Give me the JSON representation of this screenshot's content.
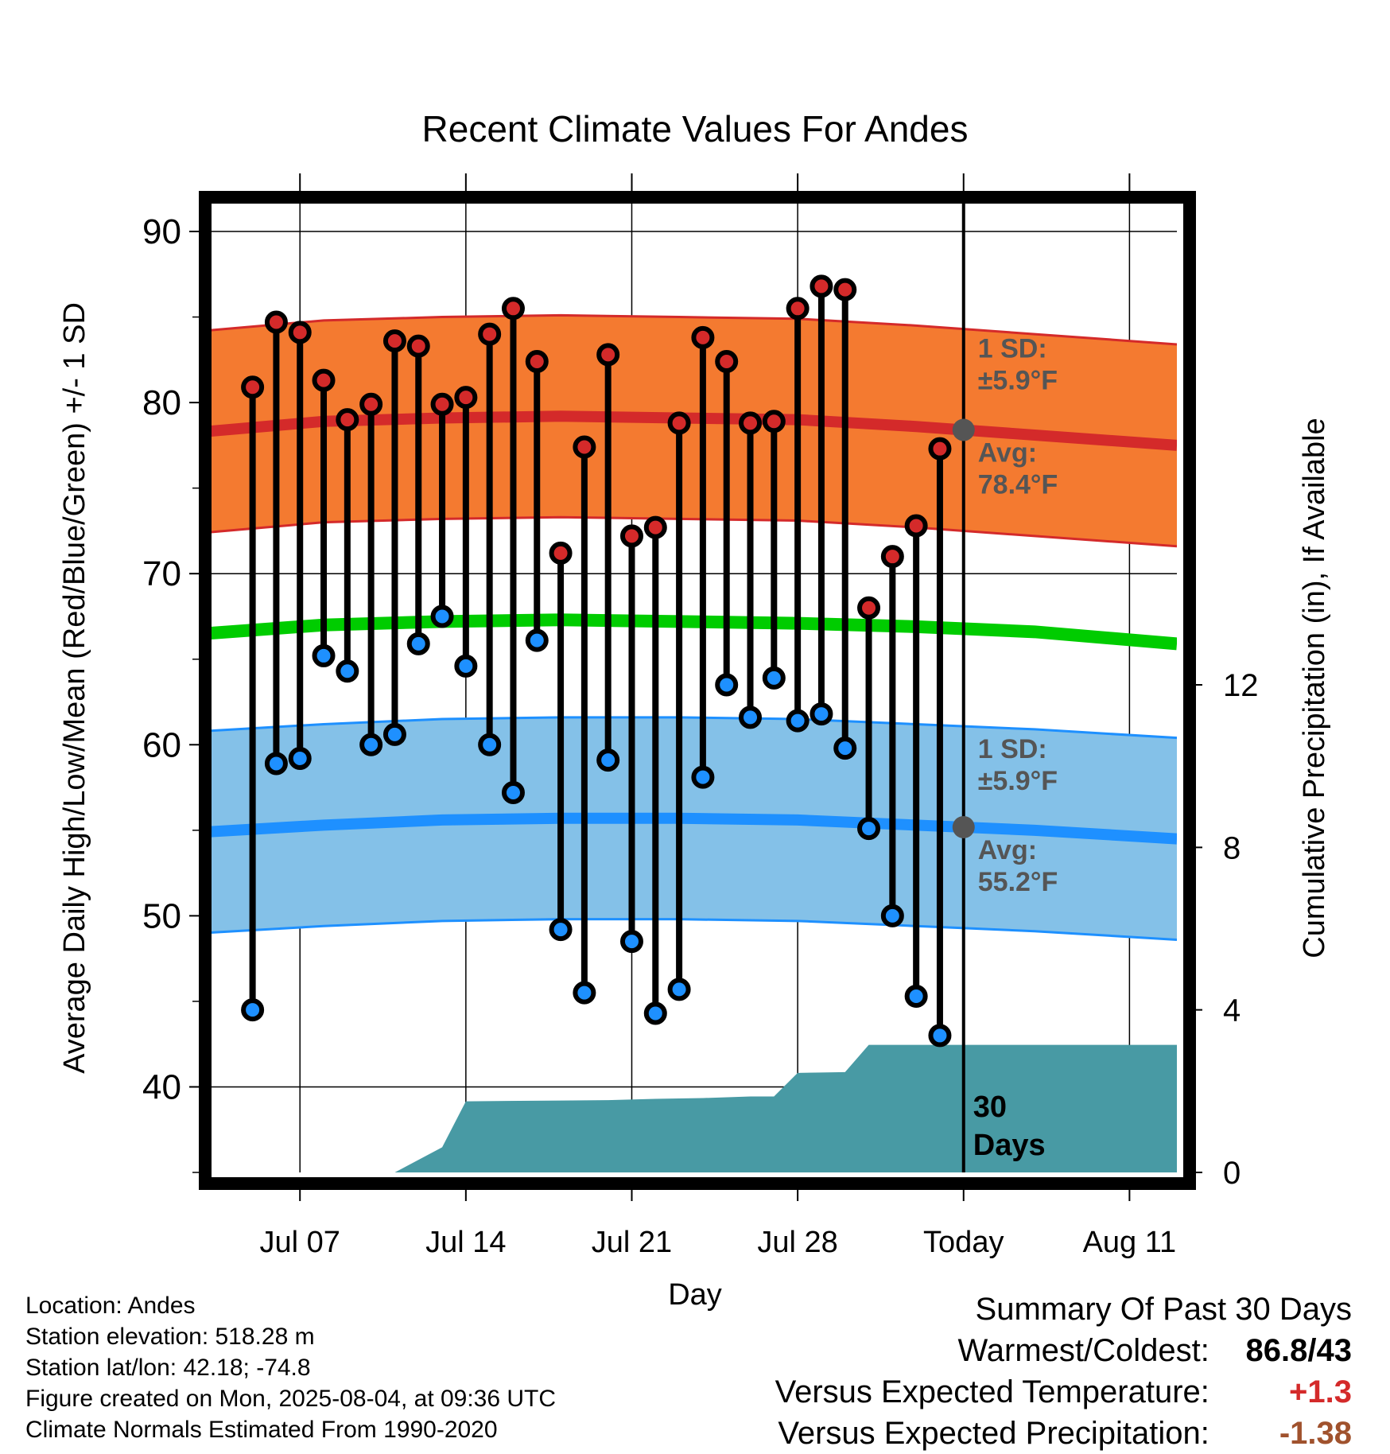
{
  "chart_data": {
    "type": "line",
    "title": "Recent Climate Values For Andes",
    "xlabel": "Day",
    "ylabel": "Average Daily High/Low/Mean (Red/Blue/Green) +/- 1 SD",
    "y2label": "Cumulative Precipitation (in), If Available",
    "ylim": [
      35,
      92
    ],
    "y2lim": [
      0,
      24
    ],
    "grid": true,
    "xlim": [
      "2025-07-03",
      "2025-08-13"
    ],
    "xticks": [
      {
        "date": "2025-07-07",
        "label": "Jul 07"
      },
      {
        "date": "2025-07-14",
        "label": "Jul 14"
      },
      {
        "date": "2025-07-21",
        "label": "Jul 21"
      },
      {
        "date": "2025-07-28",
        "label": "Jul 28"
      },
      {
        "date": "2025-08-04",
        "label": "Today"
      },
      {
        "date": "2025-08-11",
        "label": "Aug 11"
      }
    ],
    "yticks": [
      40,
      50,
      60,
      70,
      80,
      90
    ],
    "y2ticks": [
      0,
      4,
      8,
      12
    ],
    "daily_dates": [
      "2025-07-05",
      "2025-07-06",
      "2025-07-07",
      "2025-07-08",
      "2025-07-09",
      "2025-07-10",
      "2025-07-11",
      "2025-07-12",
      "2025-07-13",
      "2025-07-14",
      "2025-07-15",
      "2025-07-16",
      "2025-07-17",
      "2025-07-18",
      "2025-07-19",
      "2025-07-20",
      "2025-07-21",
      "2025-07-22",
      "2025-07-23",
      "2025-07-24",
      "2025-07-25",
      "2025-07-26",
      "2025-07-27",
      "2025-07-28",
      "2025-07-29",
      "2025-07-30",
      "2025-07-31",
      "2025-08-01",
      "2025-08-02",
      "2025-08-03"
    ],
    "series": [
      {
        "name": "High",
        "color": "#d42a2a",
        "values": [
          80.9,
          84.7,
          84.1,
          81.3,
          79.0,
          79.9,
          83.6,
          83.3,
          79.9,
          80.3,
          84.0,
          85.5,
          82.4,
          71.2,
          77.4,
          82.8,
          72.2,
          72.7,
          78.8,
          83.8,
          82.4,
          78.8,
          78.9,
          85.5,
          86.8,
          86.6,
          68.0,
          71.0,
          72.8,
          77.3
        ]
      },
      {
        "name": "Low",
        "color": "#1e90ff",
        "values": [
          44.5,
          58.9,
          59.2,
          65.2,
          64.3,
          60.0,
          60.6,
          65.9,
          67.5,
          64.6,
          60.0,
          57.2,
          66.1,
          49.2,
          45.5,
          59.1,
          48.5,
          44.3,
          45.7,
          58.1,
          63.5,
          61.6,
          63.9,
          61.4,
          61.8,
          59.8,
          55.1,
          50.0,
          45.3,
          43.0
        ]
      }
    ],
    "normals": {
      "dates": [
        "2025-07-03",
        "2025-07-08",
        "2025-07-13",
        "2025-07-18",
        "2025-07-23",
        "2025-07-28",
        "2025-08-02",
        "2025-08-07",
        "2025-08-13"
      ],
      "high_avg": [
        78.3,
        78.9,
        79.1,
        79.2,
        79.1,
        79.0,
        78.6,
        78.1,
        77.5
      ],
      "high_sd": 5.9,
      "mean_avg": [
        66.5,
        67.0,
        67.2,
        67.3,
        67.2,
        67.1,
        66.9,
        66.6,
        65.9
      ],
      "low_avg": [
        54.9,
        55.3,
        55.6,
        55.7,
        55.7,
        55.6,
        55.3,
        55.0,
        54.5
      ],
      "low_sd": 5.9,
      "high_band_color": "#f47a30",
      "low_band_color": "#84c1e8",
      "high_avg_color": "#d42a2a",
      "mean_color": "#00cc00",
      "low_avg_color": "#1e90ff"
    },
    "precipitation": {
      "color": "#489aa4",
      "dates": [
        "2025-07-03",
        "2025-07-11",
        "2025-07-13",
        "2025-07-14",
        "2025-07-18",
        "2025-07-20",
        "2025-07-22",
        "2025-07-24",
        "2025-07-26",
        "2025-07-27",
        "2025-07-28",
        "2025-07-29",
        "2025-07-30",
        "2025-07-31",
        "2025-08-13"
      ],
      "values": [
        0.0,
        0.0,
        0.62,
        1.75,
        1.77,
        1.78,
        1.81,
        1.83,
        1.87,
        1.87,
        2.45,
        2.46,
        2.47,
        3.14,
        3.14
      ]
    },
    "annotations": {
      "high_sd_title": "1 SD:",
      "high_sd_value": "±5.9°F",
      "high_avg_title": "Avg:",
      "high_avg_value": "78.4°F",
      "low_sd_title": "1 SD:",
      "low_sd_value": "±5.9°F",
      "low_avg_title": "Avg:",
      "low_avg_value": "55.2°F",
      "days_line1": "30",
      "days_line2": "Days"
    }
  },
  "info": {
    "location": "Location: Andes",
    "elevation": "Station elevation: 518.28 m",
    "latlon": "Station lat/lon: 42.18; -74.8",
    "created": "Figure created on Mon, 2025-08-04, at 09:36 UTC",
    "normals": "Climate Normals Estimated From 1990-2020"
  },
  "summary": {
    "title": "Summary Of Past 30 Days",
    "warmest_label": "Warmest/Coldest:",
    "warmest_value": "86.8/43",
    "temp_label": "Versus Expected Temperature:",
    "temp_value": "+1.3",
    "temp_color": "#d42a2a",
    "precip_label": "Versus Expected Precipitation:",
    "precip_value": "-1.38",
    "precip_color": "#a0522d"
  }
}
